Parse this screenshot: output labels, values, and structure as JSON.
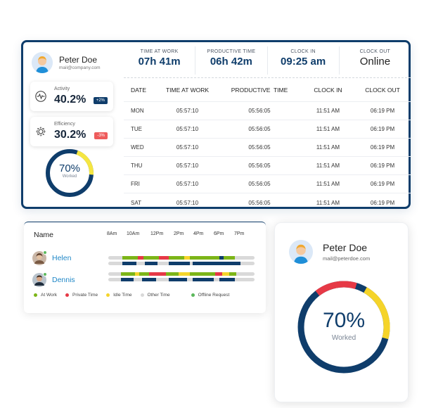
{
  "profile": {
    "name": "Peter Doe",
    "email": "mail@company.com"
  },
  "stats": {
    "activity": {
      "label": "Activity",
      "value": "40.2%",
      "change": "+2%",
      "icon": "pulse-icon"
    },
    "efficiency": {
      "label": "Efficiency",
      "value": "30.2%",
      "change": "-3%",
      "icon": "gear-efficiency-icon"
    }
  },
  "worked_small": {
    "percent": "70%",
    "label": "Worked",
    "fraction": 0.7
  },
  "summary": [
    {
      "label": "TIME AT WORK",
      "value": "07h 41m"
    },
    {
      "label": "PRODUCTIVE TIME",
      "value": "06h 42m"
    },
    {
      "label": "CLOCK IN",
      "value": "09:25 am"
    },
    {
      "label": "CLOCK OUT",
      "value": "Online"
    }
  ],
  "table": {
    "headers": [
      "DATE",
      "TIME AT WORK",
      "PRODUCTIVE  TIME",
      "CLOCK IN",
      "CLOCK OUT"
    ],
    "rows": [
      [
        "MON",
        "05:57:10",
        "05:56:05",
        "11:51 AM",
        "06:19 PM"
      ],
      [
        "TUE",
        "05:57:10",
        "05:56:05",
        "11:51 AM",
        "06:19 PM"
      ],
      [
        "WED",
        "05:57:10",
        "05:56:05",
        "11:51 AM",
        "06:19 PM"
      ],
      [
        "THU",
        "05:57:10",
        "05:56:05",
        "11:51 AM",
        "06:19 PM"
      ],
      [
        "FRI",
        "05:57:10",
        "05:56:05",
        "11:51 AM",
        "06:19 PM"
      ],
      [
        "SAT",
        "05:57:10",
        "05:56:05",
        "11:51 AM",
        "06:19 PM"
      ]
    ]
  },
  "timeline": {
    "name_header": "Name",
    "hours": [
      "8Am",
      "10Am",
      "12Pm",
      "2Pm",
      "4Pm",
      "6Pm",
      "7Pm"
    ],
    "people": [
      {
        "name": "Helen",
        "status_color": "#5cb85c"
      },
      {
        "name": "Dennis",
        "status_color": "#5cb85c"
      }
    ],
    "legend": [
      {
        "label": "At Work",
        "color": "#7cb518"
      },
      {
        "label": "Private Time",
        "color": "#e63946"
      },
      {
        "label": "Idle Time",
        "color": "#f5d42a"
      },
      {
        "label": "Other Time",
        "color": "#d9d9d9"
      },
      {
        "label": "Offline Request",
        "color": "#5cb85c"
      }
    ]
  },
  "card": {
    "name": "Peter Doe",
    "email": "mail@peterdoe.com"
  },
  "worked_big": {
    "percent": "70%",
    "label": "Worked"
  },
  "colors": {
    "primary": "#0f3d6b",
    "at_work": "#7cb518",
    "private": "#e63946",
    "idle": "#f5d42a",
    "other": "#d9d9d9",
    "offline": "#5cb85c"
  }
}
